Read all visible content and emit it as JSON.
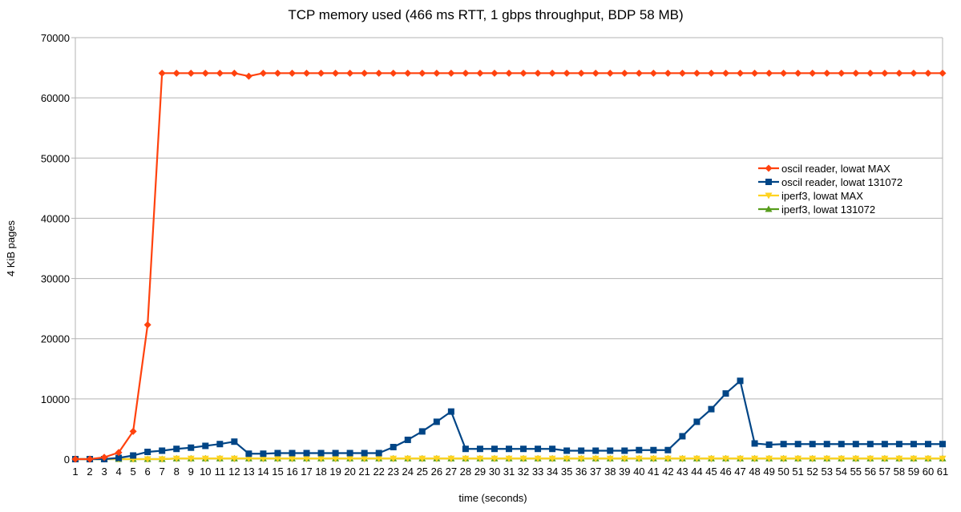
{
  "chart_data": {
    "type": "line",
    "title": "TCP memory used (466 ms RTT, 1 gbps throughput, BDP 58 MB)",
    "xlabel": "time (seconds)",
    "ylabel": "4 KiB pages",
    "ylim": [
      0,
      70000
    ],
    "yticks": [
      0,
      10000,
      20000,
      30000,
      40000,
      50000,
      60000,
      70000
    ],
    "grid": true,
    "legend_position": "right",
    "x": [
      1,
      2,
      3,
      4,
      5,
      6,
      7,
      8,
      9,
      10,
      11,
      12,
      13,
      14,
      15,
      16,
      17,
      18,
      19,
      20,
      21,
      22,
      23,
      24,
      25,
      26,
      27,
      28,
      29,
      30,
      31,
      32,
      33,
      34,
      35,
      36,
      37,
      38,
      39,
      40,
      41,
      42,
      43,
      44,
      45,
      46,
      47,
      48,
      49,
      50,
      51,
      52,
      53,
      54,
      55,
      56,
      57,
      58,
      59,
      60,
      61
    ],
    "series": [
      {
        "name": "oscil reader, lowat MAX",
        "color": "#ff420e",
        "marker": "diamond",
        "values": [
          0,
          0,
          300,
          1100,
          4600,
          22300,
          64100,
          64100,
          64100,
          64100,
          64100,
          64100,
          63600,
          64100,
          64100,
          64100,
          64100,
          64100,
          64100,
          64100,
          64100,
          64100,
          64100,
          64100,
          64100,
          64100,
          64100,
          64100,
          64100,
          64100,
          64100,
          64100,
          64100,
          64100,
          64100,
          64100,
          64100,
          64100,
          64100,
          64100,
          64100,
          64100,
          64100,
          64100,
          64100,
          64100,
          64100,
          64100,
          64100,
          64100,
          64100,
          64100,
          64100,
          64100,
          64100,
          64100,
          64100,
          64100,
          64100,
          64100,
          64100
        ]
      },
      {
        "name": "oscil reader, lowat 131072",
        "color": "#004586",
        "marker": "square",
        "values": [
          0,
          0,
          0,
          200,
          600,
          1200,
          1400,
          1700,
          1900,
          2200,
          2500,
          2900,
          900,
          900,
          1000,
          1000,
          1000,
          1000,
          1000,
          1000,
          1000,
          1000,
          2000,
          3200,
          4600,
          6200,
          7900,
          1700,
          1700,
          1700,
          1700,
          1700,
          1700,
          1700,
          1400,
          1400,
          1400,
          1400,
          1400,
          1500,
          1500,
          1500,
          3800,
          6200,
          8300,
          10900,
          13000,
          2600,
          2400,
          2500,
          2500,
          2500,
          2500,
          2500,
          2500,
          2500,
          2500,
          2500,
          2500,
          2500,
          2500
        ]
      },
      {
        "name": "iperf3, lowat MAX",
        "color": "#ffd320",
        "marker": "triangle-down",
        "values": [
          0,
          0,
          0,
          0,
          0,
          0,
          0,
          100,
          100,
          100,
          100,
          100,
          100,
          100,
          100,
          100,
          100,
          100,
          100,
          100,
          100,
          100,
          100,
          100,
          100,
          100,
          100,
          100,
          100,
          100,
          100,
          100,
          100,
          100,
          100,
          100,
          100,
          100,
          100,
          100,
          100,
          100,
          100,
          100,
          100,
          100,
          100,
          100,
          100,
          100,
          100,
          100,
          100,
          100,
          100,
          100,
          100,
          100,
          100,
          100,
          100
        ]
      },
      {
        "name": "iperf3, lowat 131072",
        "color": "#579d1c",
        "marker": "triangle-up",
        "values": [
          0,
          0,
          0,
          0,
          0,
          0,
          0,
          100,
          100,
          100,
          100,
          100,
          100,
          100,
          100,
          100,
          100,
          100,
          100,
          100,
          100,
          100,
          100,
          100,
          100,
          100,
          100,
          100,
          100,
          100,
          100,
          100,
          100,
          100,
          100,
          100,
          100,
          100,
          100,
          100,
          100,
          100,
          100,
          100,
          100,
          100,
          100,
          100,
          100,
          100,
          100,
          100,
          100,
          100,
          100,
          100,
          100,
          100,
          100,
          100,
          100
        ]
      }
    ]
  }
}
